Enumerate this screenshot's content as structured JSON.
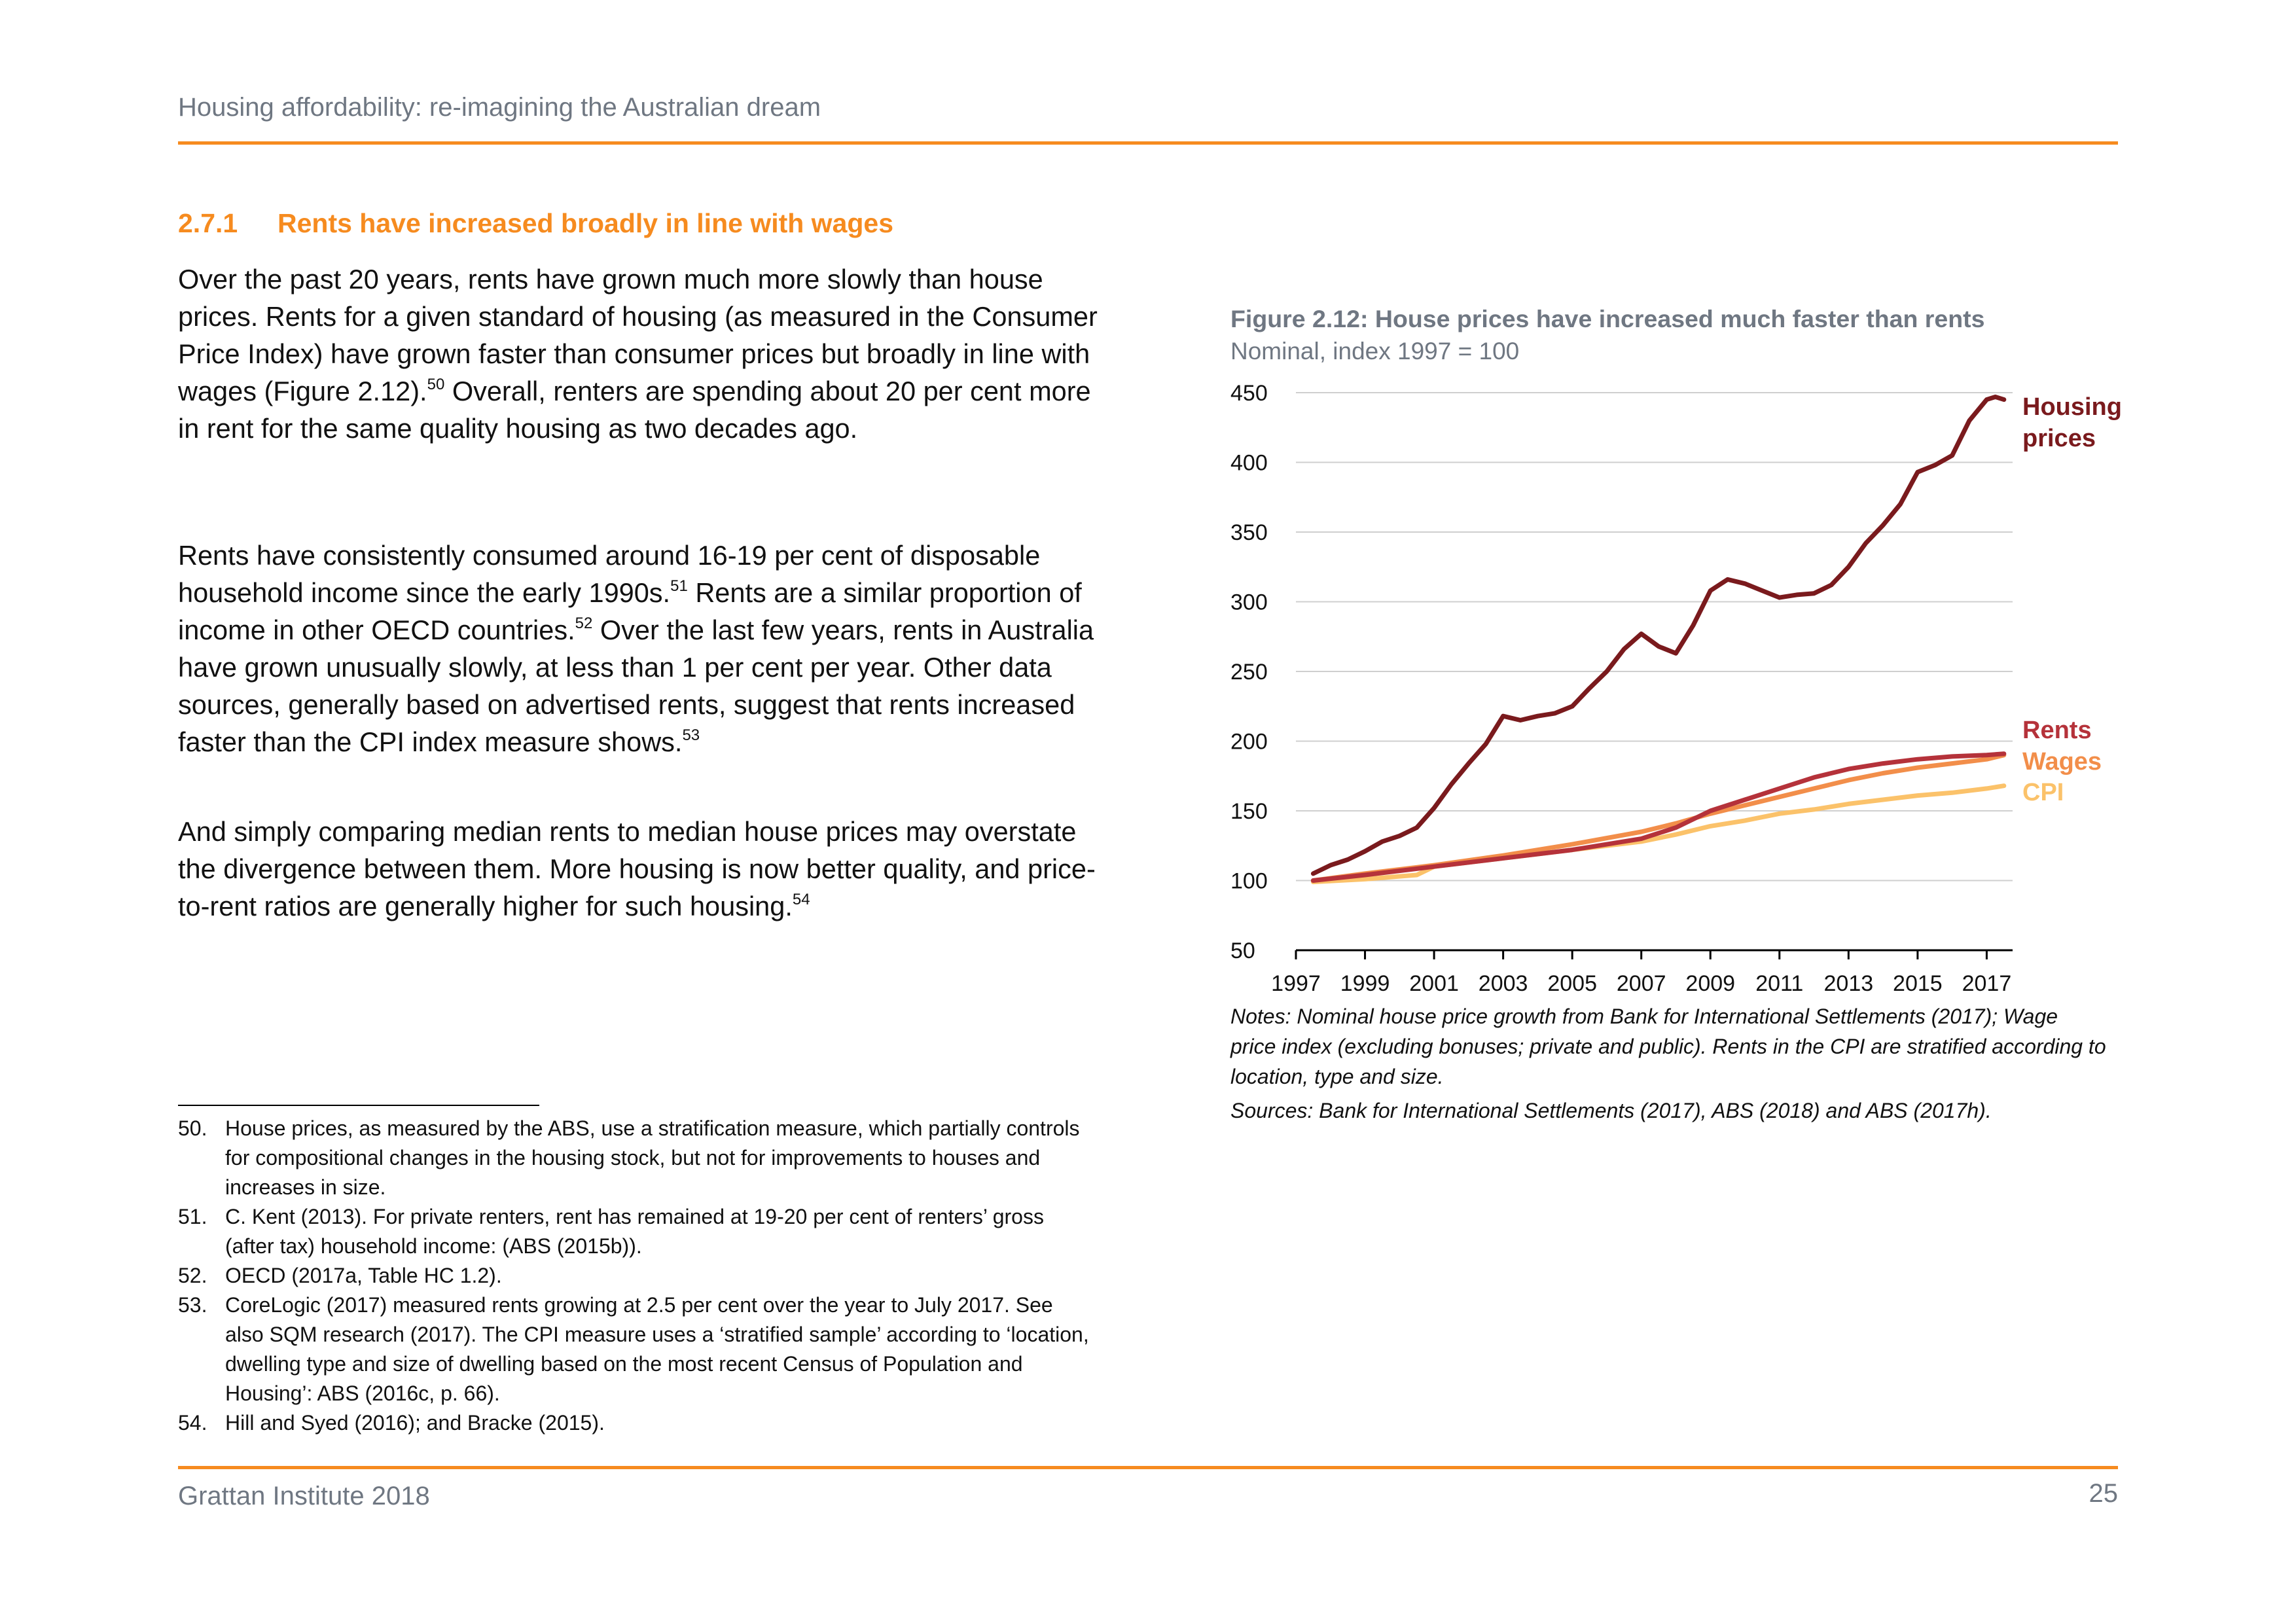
{
  "header": {
    "running_title": "Housing affordability: re-imagining the Australian dream"
  },
  "section": {
    "number": "2.7.1",
    "title": "Rents have increased broadly in line with wages"
  },
  "paragraphs": [
    {
      "t1": "Over the past 20 years, rents have grown much more slowly than house prices. Rents for a given standard of housing (as measured in the Consumer Price Index) have grown faster than consumer prices but broadly in line with wages (Figure 2.12).",
      "s1": "50",
      "t2": " Overall, renters are spending about 20 per cent more in rent for the same quality housing as two decades ago."
    },
    {
      "t1": "Rents have consistently consumed around 16-19 per cent of disposable household income since the early 1990s.",
      "s1": "51",
      "t2": " Rents are a similar proportion of income in other OECD countries.",
      "s2": "52",
      "t3": " Over the last few years, rents in Australia have grown unusually slowly, at less than 1 per cent per year. Other data sources, generally based on advertised rents, suggest that rents increased faster than the CPI index measure shows.",
      "s3": "53"
    },
    {
      "t1": "And simply comparing median rents to median house prices may overstate the divergence between them. More housing is now better quality, and price-to-rent ratios are generally higher for such housing.",
      "s1": "54"
    }
  ],
  "footnotes": [
    {
      "num": "50.",
      "text": "House prices, as measured by the ABS, use a stratification measure, which partially controls for compositional changes in the housing stock, but not for improvements to houses and increases in size."
    },
    {
      "num": "51.",
      "text": "C. Kent (2013). For private renters, rent has remained at 19-20 per cent of renters’ gross (after tax) household income: (ABS (2015b))."
    },
    {
      "num": "52.",
      "text": "OECD (2017a, Table HC 1.2)."
    },
    {
      "num": "53.",
      "text": "CoreLogic (2017) measured rents growing at 2.5 per cent over the year to July 2017. See also SQM research (2017). The CPI measure uses a ‘stratified sample’ according to ‘location, dwelling type and size of dwelling based on the most recent Census of Population and Housing’: ABS (2016c, p. 66)."
    },
    {
      "num": "54.",
      "text": "Hill and Syed (2016);  and Bracke (2015)."
    }
  ],
  "footer": {
    "left": "Grattan Institute 2018",
    "page": "25"
  },
  "figure": {
    "title": "Figure 2.12: House prices have increased much faster than rents",
    "subtitle": "Nominal, index 1997 = 100",
    "notes": "Notes: Nominal house price growth from Bank for International Settlements (2017); Wage price index (excluding bonuses; private and public). Rents in the CPI are stratified according to location, type and size.",
    "sources": "Sources: Bank for International Settlements (2017), ABS (2018) and ABS (2017h)."
  },
  "colors": {
    "accent": "#f68b1f",
    "grey_text": "#6f7782"
  },
  "chart_data": {
    "type": "line",
    "xlim": [
      1997,
      2017.75
    ],
    "ylim": [
      50,
      450
    ],
    "y_ticks": [
      50,
      100,
      150,
      200,
      250,
      300,
      350,
      400,
      450
    ],
    "x_ticks": [
      1997,
      1999,
      2001,
      2003,
      2005,
      2007,
      2009,
      2011,
      2013,
      2015,
      2017
    ],
    "grid": true,
    "legend_placement": "labels at right end of lines",
    "series": [
      {
        "name": "Housing prices",
        "label_lines": [
          "Housing",
          "prices"
        ],
        "color": "#7a1a1d",
        "x": [
          1997.5,
          1998,
          1998.5,
          1999,
          1999.5,
          2000,
          2000.5,
          2001,
          2001.5,
          2002,
          2002.5,
          2003,
          2003.5,
          2004,
          2004.5,
          2005,
          2005.5,
          2006,
          2006.5,
          2007,
          2007.5,
          2008,
          2008.5,
          2009,
          2009.5,
          2010,
          2010.5,
          2011,
          2011.5,
          2012,
          2012.5,
          2013,
          2013.5,
          2014,
          2014.5,
          2015,
          2015.5,
          2016,
          2016.5,
          2017,
          2017.25,
          2017.5
        ],
        "values": [
          105,
          111,
          115,
          121,
          128,
          132,
          138,
          152,
          169,
          184,
          198,
          218,
          215,
          218,
          220,
          225,
          238,
          250,
          266,
          277,
          268,
          263,
          283,
          308,
          316,
          313,
          308,
          303,
          305,
          306,
          312,
          325,
          342,
          355,
          370,
          393,
          398,
          405,
          430,
          445,
          447,
          445
        ]
      },
      {
        "name": "Rents",
        "color": "#b5323a",
        "x": [
          1997.5,
          1999,
          2001,
          2003,
          2005,
          2007,
          2008,
          2009,
          2010,
          2011,
          2012,
          2013,
          2014,
          2015,
          2016,
          2017,
          2017.5
        ],
        "values": [
          100,
          104,
          110,
          116,
          122,
          130,
          138,
          150,
          158,
          166,
          174,
          180,
          184,
          187,
          189,
          190,
          191
        ]
      },
      {
        "name": "Wages",
        "color": "#f28e4a",
        "x": [
          1997.5,
          1999,
          2001,
          2003,
          2005,
          2007,
          2008,
          2009,
          2010,
          2011,
          2012,
          2013,
          2014,
          2015,
          2016,
          2017,
          2017.5
        ],
        "values": [
          100,
          105,
          111,
          118,
          126,
          135,
          141,
          148,
          154,
          160,
          166,
          172,
          177,
          181,
          184,
          187,
          190
        ]
      },
      {
        "name": "CPI",
        "color": "#fbc26a",
        "x": [
          1997.5,
          1999,
          2000.5,
          2001,
          2003,
          2005,
          2007,
          2008,
          2009,
          2010,
          2011,
          2012,
          2013,
          2014,
          2015,
          2016,
          2017,
          2017.5
        ],
        "values": [
          99,
          101,
          104,
          110,
          116,
          122,
          128,
          133,
          139,
          143,
          148,
          151,
          155,
          158,
          161,
          163,
          166,
          168
        ]
      }
    ]
  }
}
